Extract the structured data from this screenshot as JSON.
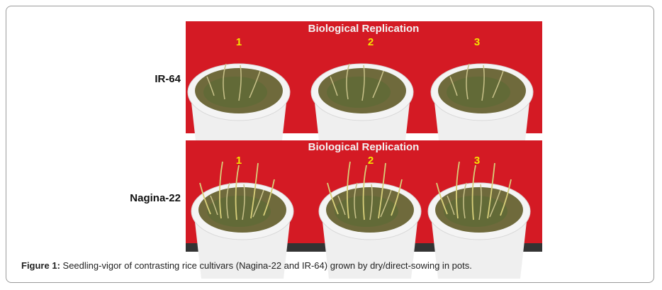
{
  "figure": {
    "panels": [
      {
        "row_label": "IR-64",
        "header": "Biological Replication",
        "replicates": [
          "1",
          "2",
          "3"
        ]
      },
      {
        "row_label": "Nagina-22",
        "header": "Biological Replication",
        "replicates": [
          "1",
          "2",
          "3"
        ]
      }
    ],
    "caption": {
      "label": "Figure 1:",
      "text": "Seedling-vigor of contrasting rice cultivars (Nagina-22 and IR-64) grown by dry/direct-sowing in pots."
    }
  }
}
